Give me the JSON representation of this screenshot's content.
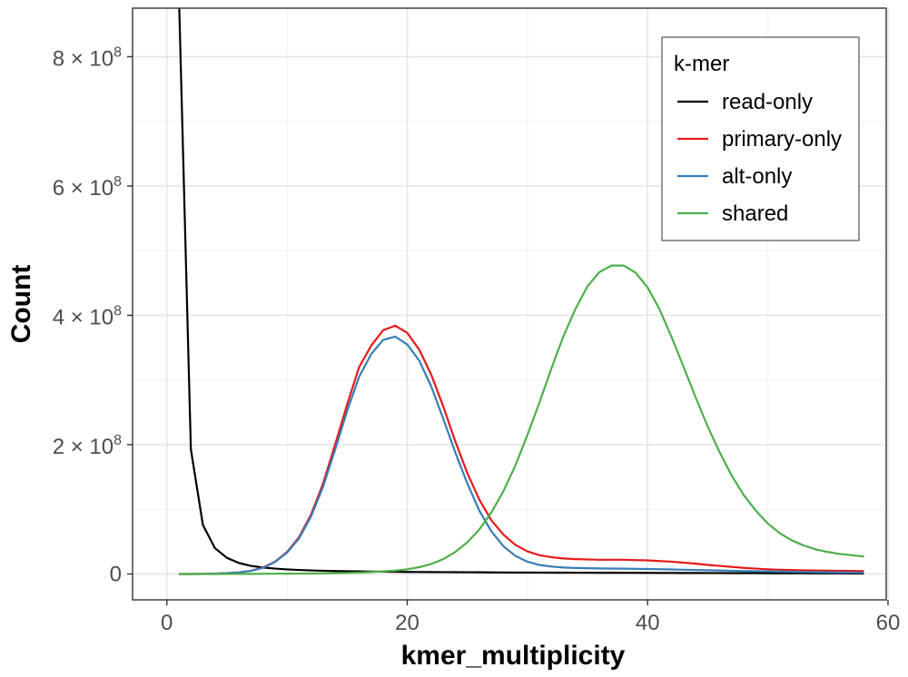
{
  "chart_data": {
    "type": "line",
    "title": "",
    "xlabel": "kmer_multiplicity",
    "ylabel": "Count",
    "xlim": [
      -2.85,
      59.85
    ],
    "ylim": [
      -40000000.0,
      875000000.0
    ],
    "x_ticks": [
      {
        "value": 0,
        "label": "0"
      },
      {
        "value": 20,
        "label": "20"
      },
      {
        "value": 40,
        "label": "40"
      },
      {
        "value": 60,
        "label": "60"
      }
    ],
    "y_ticks": [
      {
        "value": 0,
        "label": "0"
      },
      {
        "value": 200000000.0,
        "label": "2 × 10",
        "exp": "8"
      },
      {
        "value": 400000000.0,
        "label": "4 × 10",
        "exp": "8"
      },
      {
        "value": 600000000.0,
        "label": "6 × 10",
        "exp": "8"
      },
      {
        "value": 800000000.0,
        "label": "8 × 10",
        "exp": "8"
      }
    ],
    "grid": true,
    "legend": {
      "title": "k-mer",
      "position": "top-right"
    },
    "x": [
      1,
      2,
      3,
      4,
      5,
      6,
      7,
      8,
      9,
      10,
      11,
      12,
      13,
      14,
      15,
      16,
      17,
      18,
      19,
      20,
      21,
      22,
      23,
      24,
      25,
      26,
      27,
      28,
      29,
      30,
      31,
      32,
      33,
      34,
      35,
      36,
      37,
      38,
      39,
      40,
      41,
      42,
      43,
      44,
      45,
      46,
      47,
      48,
      49,
      50,
      51,
      52,
      53,
      54,
      55,
      56,
      57,
      58
    ],
    "series": [
      {
        "name": "read-only",
        "color": "#000000",
        "values": [
          900000000,
          193000000,
          76000000,
          40000000,
          25000000,
          17000000,
          12500000,
          10000000,
          8300000,
          7100000,
          6200000,
          5500000,
          5000000,
          4600000,
          4300000,
          4000000,
          3800000,
          3600000,
          3400000,
          3200000,
          3100000,
          3000000,
          2900000,
          2800000,
          2700000,
          2600000,
          2500000,
          2400000,
          2300000,
          2250000,
          2200000,
          2150000,
          2100000,
          2050000,
          2000000,
          1950000,
          1900000,
          1850000,
          1800000,
          1750000,
          1700000,
          1650000,
          1600000,
          1550000,
          1500000,
          1450000,
          1400000,
          1350000,
          1300000,
          1250000,
          1200000,
          1150000,
          1100000,
          1050000,
          1000000,
          950000,
          900000,
          850000
        ]
      },
      {
        "name": "primary-only",
        "color": "#e41a1c",
        "values": [
          0,
          0,
          200000,
          500000,
          1300000,
          2500000,
          5000000,
          10000000,
          19000000,
          34000000,
          57000000,
          92000000,
          140000000,
          200000000,
          262000000,
          320000000,
          353000000,
          377000000,
          384000000,
          373000000,
          347000000,
          308000000,
          259000000,
          205000000,
          156000000,
          115000000,
          83000000,
          61000000,
          45000000,
          35000000,
          29000000,
          26000000,
          24000000,
          23000000,
          22500000,
          22000000,
          22000000,
          22000000,
          21500000,
          21000000,
          20000000,
          19000000,
          17500000,
          16000000,
          14000000,
          12500000,
          11000000,
          9500000,
          8300000,
          7300000,
          6600000,
          6100000,
          5700000,
          5400000,
          5100000,
          4900000,
          4700000,
          4500000
        ]
      },
      {
        "name": "alt-only",
        "color": "#377eb8",
        "values": [
          0,
          0,
          200000,
          500000,
          1200000,
          2400000,
          4800000,
          9500000,
          18500000,
          33000000,
          55000000,
          89000000,
          135000000,
          192000000,
          252000000,
          305000000,
          340000000,
          362000000,
          367000000,
          355000000,
          330000000,
          290000000,
          240000000,
          188000000,
          140000000,
          98000000,
          66000000,
          43000000,
          28000000,
          19000000,
          14000000,
          11500000,
          10000000,
          9300000,
          8900000,
          8600000,
          8400000,
          8200000,
          8000000,
          7700000,
          7400000,
          7000000,
          6600000,
          6200000,
          5800000,
          5400000,
          5000000,
          4600000,
          4300000,
          4000000,
          3700000,
          3400000,
          3100000,
          2800000,
          2600000,
          2400000,
          2200000,
          2000000
        ]
      },
      {
        "name": "shared",
        "color": "#4daf4a",
        "values": [
          0,
          0,
          0,
          0,
          100000,
          100000,
          200000,
          300000,
          400000,
          500000,
          600000,
          800000,
          1000000,
          1300000,
          1700000,
          2200000,
          3000000,
          4000000,
          5300000,
          7300000,
          10500000,
          15500000,
          23000000,
          34000000,
          49000000,
          69000000,
          95000000,
          128000000,
          168000000,
          215000000,
          265000000,
          318000000,
          368000000,
          410000000,
          445000000,
          467000000,
          477000000,
          477000000,
          466000000,
          443000000,
          409000000,
          366000000,
          320000000,
          273000000,
          228000000,
          188000000,
          152000000,
          122000000,
          98000000,
          78000000,
          63000000,
          52000000,
          44000000,
          38000000,
          34000000,
          31000000,
          29000000,
          27000000
        ]
      }
    ]
  }
}
